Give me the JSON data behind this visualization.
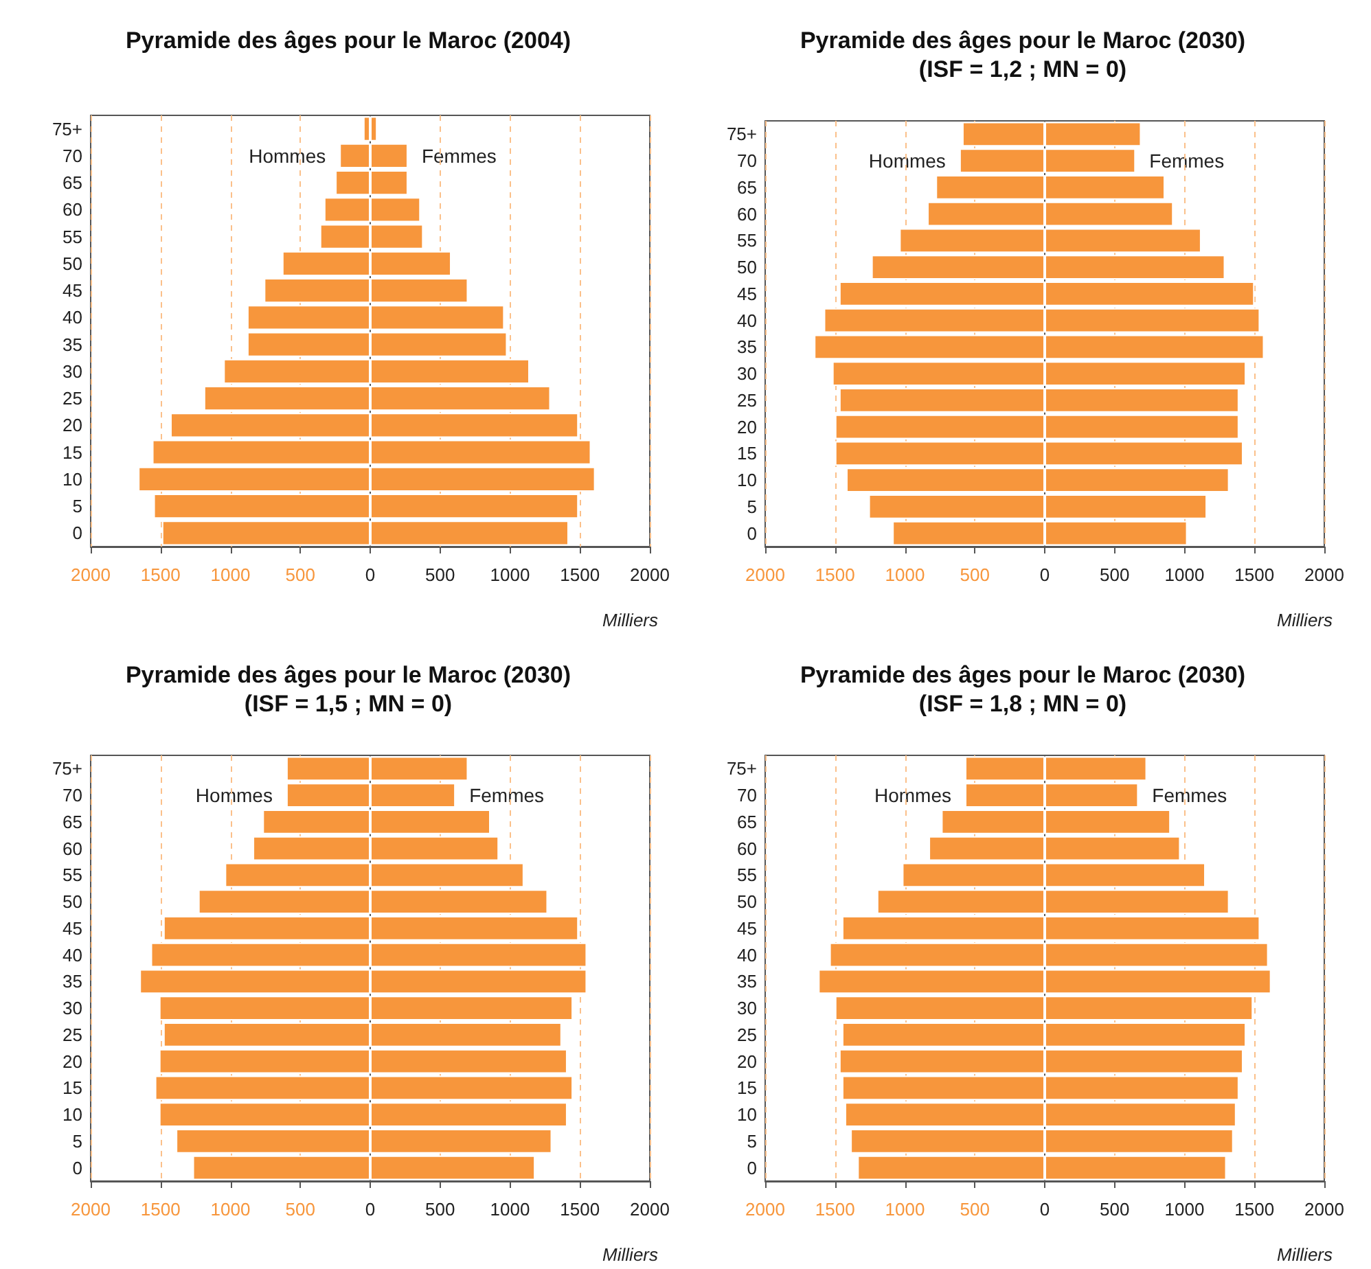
{
  "chart_data": [
    {
      "type": "bar",
      "orientation": "horizontal",
      "stacked": true,
      "grid": "x",
      "title": "Pyramide des âges pour le Maroc (2004)",
      "xlabel": "Milliers",
      "categories": [
        "75+",
        "70",
        "65",
        "60",
        "55",
        "50",
        "45",
        "40",
        "35",
        "30",
        "25",
        "20",
        "15",
        "10",
        "5",
        "0"
      ],
      "xlim": [
        -2000,
        2000
      ],
      "xticks": [
        {
          "value": -2000,
          "label": "2000"
        },
        {
          "value": -1500,
          "label": "1500"
        },
        {
          "value": -1000,
          "label": "1000"
        },
        {
          "value": -500,
          "label": "500"
        },
        0,
        500,
        1000,
        1500,
        2000
      ],
      "series": [
        {
          "name": "Hommes",
          "color": "#f7963c",
          "values": [
            -50,
            -220,
            -250,
            -330,
            -360,
            -630,
            -760,
            -880,
            -880,
            -1050,
            -1190,
            -1430,
            -1560,
            -1660,
            -1550,
            -1490
          ]
        },
        {
          "name": "Femmes",
          "color": "#f7963c",
          "values": [
            50,
            270,
            270,
            360,
            380,
            580,
            700,
            960,
            980,
            1140,
            1290,
            1490,
            1580,
            1610,
            1490,
            1420
          ]
        }
      ]
    },
    {
      "type": "bar",
      "orientation": "horizontal",
      "stacked": true,
      "grid": "x",
      "title": "Pyramide des âges pour le Maroc (2030)",
      "subtitle": "(ISF = 1,2 ; MN = 0)",
      "xlabel": "Milliers",
      "categories": [
        "75+",
        "70",
        "65",
        "60",
        "55",
        "50",
        "45",
        "40",
        "35",
        "30",
        "25",
        "20",
        "15",
        "10",
        "5",
        "0"
      ],
      "xlim": [
        -2000,
        2000
      ],
      "xticks": [
        {
          "value": -2000,
          "label": "2000"
        },
        {
          "value": -1500,
          "label": "1500"
        },
        {
          "value": -1000,
          "label": "1000"
        },
        {
          "value": -500,
          "label": "500"
        },
        0,
        500,
        1000,
        1500,
        2000
      ],
      "series": [
        {
          "name": "Hommes",
          "color": "#f7963c",
          "values": [
            -590,
            -610,
            -780,
            -840,
            -1040,
            -1240,
            -1470,
            -1580,
            -1650,
            -1520,
            -1470,
            -1500,
            -1500,
            -1420,
            -1260,
            -1090
          ]
        },
        {
          "name": "Femmes",
          "color": "#f7963c",
          "values": [
            690,
            650,
            860,
            920,
            1120,
            1290,
            1500,
            1540,
            1570,
            1440,
            1390,
            1390,
            1420,
            1320,
            1160,
            1020
          ]
        }
      ]
    },
    {
      "type": "bar",
      "orientation": "horizontal",
      "stacked": true,
      "grid": "x",
      "title": "Pyramide des âges pour le Maroc (2030)",
      "subtitle": "(ISF = 1,5 ; MN = 0)",
      "xlabel": "Milliers",
      "categories": [
        "75+",
        "70",
        "65",
        "60",
        "55",
        "50",
        "45",
        "40",
        "35",
        "30",
        "25",
        "20",
        "15",
        "10",
        "5",
        "0"
      ],
      "xlim": [
        -2000,
        2000
      ],
      "xticks": [
        {
          "value": -2000,
          "label": "2000"
        },
        {
          "value": -1500,
          "label": "1500"
        },
        {
          "value": -1000,
          "label": "1000"
        },
        {
          "value": -500,
          "label": "500"
        },
        0,
        500,
        1000,
        1500,
        2000
      ],
      "series": [
        {
          "name": "Hommes",
          "color": "#f7963c",
          "values": [
            -600,
            -600,
            -770,
            -840,
            -1040,
            -1230,
            -1480,
            -1570,
            -1650,
            -1510,
            -1480,
            -1510,
            -1540,
            -1510,
            -1390,
            -1270
          ]
        },
        {
          "name": "Femmes",
          "color": "#f7963c",
          "values": [
            700,
            610,
            860,
            920,
            1100,
            1270,
            1490,
            1550,
            1550,
            1450,
            1370,
            1410,
            1450,
            1410,
            1300,
            1180
          ]
        }
      ]
    },
    {
      "type": "bar",
      "orientation": "horizontal",
      "stacked": true,
      "grid": "x",
      "title": "Pyramide des âges pour le Maroc (2030)",
      "subtitle": "(ISF = 1,8 ; MN = 0)",
      "xlabel": "Milliers",
      "categories": [
        "75+",
        "70",
        "65",
        "60",
        "55",
        "50",
        "45",
        "40",
        "35",
        "30",
        "25",
        "20",
        "15",
        "10",
        "5",
        "0"
      ],
      "xlim": [
        -2000,
        2000
      ],
      "xticks": [
        {
          "value": -2000,
          "label": "2000"
        },
        {
          "value": -1500,
          "label": "1500"
        },
        {
          "value": -1000,
          "label": "1000"
        },
        {
          "value": -500,
          "label": "500"
        },
        0,
        500,
        1000,
        1500,
        2000
      ],
      "series": [
        {
          "name": "Hommes",
          "color": "#f7963c",
          "values": [
            -570,
            -570,
            -740,
            -830,
            -1020,
            -1200,
            -1450,
            -1540,
            -1620,
            -1500,
            -1450,
            -1470,
            -1450,
            -1430,
            -1390,
            -1340
          ]
        },
        {
          "name": "Femmes",
          "color": "#f7963c",
          "values": [
            730,
            670,
            900,
            970,
            1150,
            1320,
            1540,
            1600,
            1620,
            1490,
            1440,
            1420,
            1390,
            1370,
            1350,
            1300
          ]
        }
      ]
    }
  ]
}
